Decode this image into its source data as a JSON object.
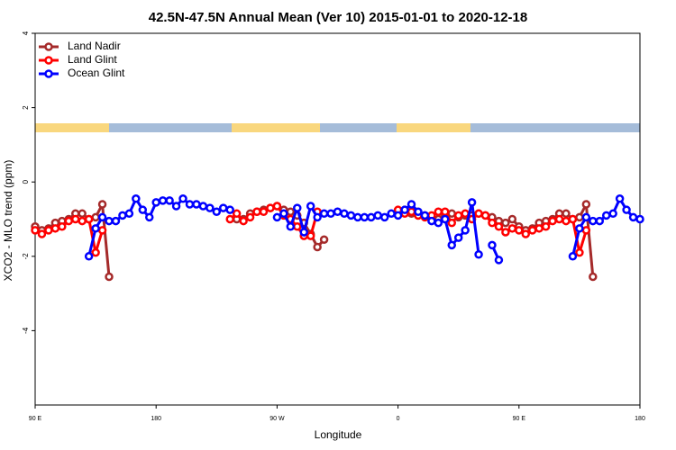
{
  "chart_data": {
    "type": "line",
    "title": "42.5N-47.5N Annual Mean (Ver 10)   2015-01-01 to 2020-12-18",
    "x_label": "Longitude",
    "y_label": "XCO2 - MLO trend (ppm)",
    "xlim": [
      90,
      540
    ],
    "ylim": [
      -6,
      4
    ],
    "xticks": [
      {
        "value": 90,
        "label": "90 E"
      },
      180,
      {
        "value": 270,
        "label": "90 W"
      },
      {
        "value": 360,
        "label": "0"
      },
      {
        "value": 450,
        "label": "90 E"
      },
      {
        "value": 540,
        "label": "180"
      }
    ],
    "yticks": [
      -4,
      -2,
      0,
      2,
      4
    ],
    "grid": false,
    "legend": "top-left",
    "series": [
      {
        "name": "Land Nadir",
        "color": "#a52a2a",
        "x": [
          90,
          95,
          100,
          105,
          110,
          115,
          120,
          125,
          130,
          135,
          140,
          145,
          150,
          240,
          245,
          250,
          255,
          260,
          265,
          270,
          275,
          280,
          285,
          290,
          295,
          300,
          305,
          310,
          360,
          365,
          370,
          375,
          380,
          385,
          390,
          395,
          400,
          405,
          410,
          415,
          420,
          425,
          430,
          435,
          440,
          445,
          450,
          455,
          460,
          465,
          470,
          475,
          480,
          485,
          490,
          495,
          500,
          505
        ],
        "values": [
          -1.2,
          -1.3,
          -1.25,
          -1.1,
          -1.05,
          -1.0,
          -0.85,
          -0.85,
          -1.0,
          -0.95,
          -0.6,
          -2.55,
          null,
          -1.0,
          -1.0,
          -0.85,
          -0.8,
          -0.75,
          -0.7,
          -0.65,
          -0.75,
          -0.8,
          -0.9,
          -1.1,
          -1.4,
          -1.75,
          -1.55,
          null,
          -0.8,
          -0.75,
          -0.85,
          -0.9,
          -0.9,
          -0.95,
          -1.0,
          -0.85,
          -0.85,
          -0.95,
          -0.9,
          -0.9,
          -0.85,
          -0.9,
          -0.95,
          -1.05,
          -1.1,
          -1.0,
          -1.2,
          -1.3,
          -1.25,
          -1.1,
          -1.05,
          -1.0,
          -0.85,
          -0.85,
          -1.0,
          -0.95,
          -0.6,
          -2.55
        ]
      },
      {
        "name": "Land Glint",
        "color": "#ff0000",
        "x": [
          90,
          95,
          100,
          105,
          110,
          115,
          120,
          125,
          130,
          135,
          140,
          145,
          235,
          240,
          245,
          250,
          255,
          260,
          265,
          270,
          275,
          280,
          285,
          290,
          295,
          300,
          305,
          360,
          365,
          370,
          375,
          380,
          385,
          390,
          395,
          400,
          405,
          410,
          415,
          420,
          425,
          430,
          435,
          440,
          445,
          450,
          455,
          460,
          465,
          470,
          475,
          480,
          485,
          490,
          495,
          500
        ],
        "values": [
          -1.3,
          -1.4,
          -1.3,
          -1.25,
          -1.2,
          -1.05,
          -1.0,
          -1.05,
          -1.0,
          -1.9,
          -1.3,
          null,
          -1.0,
          -0.85,
          -1.05,
          -0.95,
          -0.8,
          -0.8,
          -0.7,
          -0.65,
          -0.9,
          -1.0,
          -1.2,
          -1.45,
          -1.45,
          -0.8,
          null,
          -0.75,
          -0.85,
          -0.8,
          -0.9,
          -0.95,
          -0.9,
          -0.8,
          -0.8,
          -1.1,
          -0.9,
          -0.85,
          -1.0,
          -0.85,
          -0.9,
          -1.1,
          -1.2,
          -1.35,
          -1.25,
          -1.3,
          -1.4,
          -1.3,
          -1.25,
          -1.2,
          -1.05,
          -1.0,
          -1.05,
          -1.0,
          -1.9,
          -1.3
        ]
      },
      {
        "name": "Ocean Glint",
        "color": "#0000ff",
        "x": [
          130,
          135,
          140,
          145,
          150,
          155,
          160,
          165,
          170,
          175,
          180,
          185,
          190,
          195,
          200,
          205,
          210,
          215,
          220,
          225,
          230,
          235,
          240,
          270,
          275,
          280,
          285,
          290,
          295,
          300,
          305,
          310,
          315,
          320,
          325,
          330,
          335,
          340,
          345,
          350,
          355,
          360,
          365,
          370,
          375,
          380,
          385,
          390,
          395,
          400,
          405,
          410,
          415,
          420,
          425,
          430,
          435,
          440,
          490,
          495,
          500,
          505,
          510,
          515,
          520,
          525,
          530,
          535,
          540
        ],
        "values": [
          -2.0,
          -1.25,
          -0.95,
          -1.05,
          -1.05,
          -0.9,
          -0.85,
          -0.45,
          -0.75,
          -0.95,
          -0.55,
          -0.5,
          -0.5,
          -0.65,
          -0.45,
          -0.6,
          -0.6,
          -0.65,
          -0.7,
          -0.8,
          -0.7,
          -0.75,
          null,
          -0.95,
          -0.85,
          -1.2,
          -0.7,
          -1.35,
          -0.65,
          -0.95,
          -0.85,
          -0.85,
          -0.8,
          -0.85,
          -0.9,
          -0.95,
          -0.95,
          -0.95,
          -0.9,
          -0.95,
          -0.85,
          -0.9,
          -0.75,
          -0.6,
          -0.8,
          -0.9,
          -1.05,
          -1.1,
          -1.0,
          -1.7,
          -1.5,
          -1.3,
          -0.55,
          -1.95,
          null,
          -1.7,
          -2.1,
          null,
          -2.0,
          -1.25,
          -0.95,
          -1.05,
          -1.05,
          -0.9,
          -0.85,
          -0.45,
          -0.75,
          -0.95,
          -1.0
        ]
      }
    ]
  }
}
